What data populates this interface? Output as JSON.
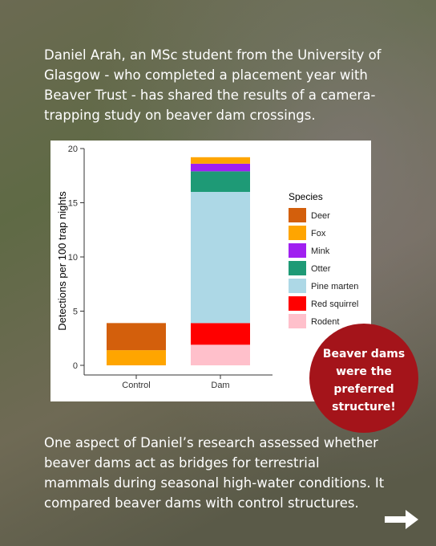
{
  "intro": {
    "lines": [
      "Daniel Arah, an MSc student from the University of",
      "Glasgow - who completed a placement year with",
      "Beaver Trust - has shared the results of a camera-",
      "trapping study on beaver dam crossings."
    ]
  },
  "chart_data": {
    "type": "stacked-bar",
    "y_label": "Detections per 100 trap nights",
    "categories": [
      "Control",
      "Dam"
    ],
    "legend_title": "Species",
    "legend_position": "right",
    "grid": false,
    "ylim": [
      0,
      20
    ],
    "yticks": [
      0,
      5,
      10,
      15,
      20
    ],
    "series": [
      {
        "name": "Deer",
        "color": "#d35f0c",
        "values": [
          2.5,
          0
        ]
      },
      {
        "name": "Fox",
        "color": "#ffa500",
        "values": [
          1.4,
          0.6
        ]
      },
      {
        "name": "Mink",
        "color": "#a020f0",
        "values": [
          0,
          0.7
        ]
      },
      {
        "name": "Otter",
        "color": "#1e9a76",
        "values": [
          0,
          1.9
        ]
      },
      {
        "name": "Pine marten",
        "color": "#add8e6",
        "values": [
          0,
          12.1
        ]
      },
      {
        "name": "Red squirrel",
        "color": "#ff0000",
        "values": [
          0,
          2.0
        ]
      },
      {
        "name": "Rodent",
        "color": "#ffc0cb",
        "values": [
          0,
          1.9
        ]
      }
    ]
  },
  "callout": {
    "lines": [
      "Beaver dams",
      "were the",
      "preferred",
      "structure!"
    ]
  },
  "body": {
    "lines": [
      "One aspect of Daniel’s research assessed whether",
      "beaver dams act as bridges for terrestrial",
      "mammals during seasonal high-water conditions. It",
      "compared beaver dams with control structures."
    ]
  }
}
